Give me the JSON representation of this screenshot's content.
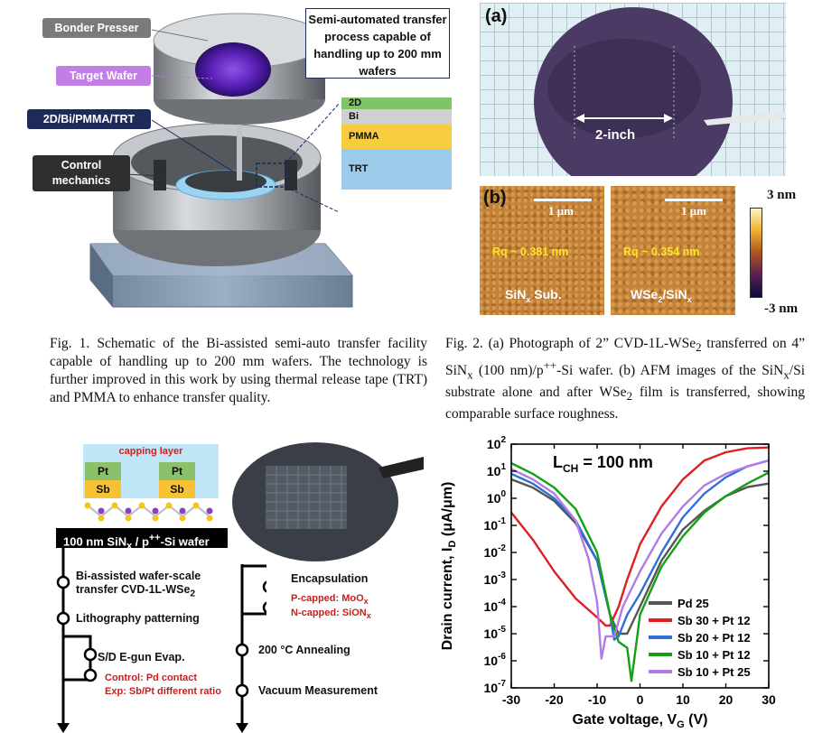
{
  "fig1": {
    "labels": {
      "bonder_presser": "Bonder Presser",
      "target_wafer": "Target Wafer",
      "stack": "2D/Bi/PMMA/TRT",
      "control": "Control mechanics"
    },
    "callout": "Semi-automated transfer process capable of handling up to 200 mm wafers",
    "layers": [
      "2D",
      "Bi",
      "PMMA",
      "TRT"
    ],
    "caption": "Fig. 1. Schematic of the Bi-assisted semi-auto transfer facility capable of handling up to 200 mm wafers. The technology is further improved in this work by using thermal release tape (TRT) and PMMA to enhance transfer quality."
  },
  "fig2": {
    "panel_a": "(a)",
    "panel_b": "(b)",
    "inch_label": "2-inch",
    "scale": "1 μm",
    "rq1": "Rq ~ 0.381 nm",
    "rq2": "Rq ~ 0.354 nm",
    "sub1": "SiN",
    "sub1_sub": "x",
    "sub1_tail": " Sub.",
    "sub2": "WSe",
    "sub2_sub1": "2",
    "sub2_mid": "/SiN",
    "sub2_sub2": "x",
    "cb_top": "3 nm",
    "cb_bot": "-3 nm",
    "caption_html": "Fig. 2. (a) Photograph of 2” CVD-1L-WSe<sub>2</sub> transferred on 4” SiN<sub>x</sub> (100 nm)/p<sup>++</sup>-Si wafer. (b) AFM images of the SiN<sub>x</sub>/Si substrate alone and after WSe<sub>2</sub> film is transferred, showing comparable surface roughness."
  },
  "flow": {
    "capping": "capping layer",
    "pt": "Pt",
    "sb": "Sb",
    "substrate_html": "100 nm SiN<sub>x</sub> / p<sup>++</sup>-Si wafer",
    "step1_html": "Bi-assisted wafer-scale<br>transfer CVD-1L-WSe<sub>2</sub>",
    "step2": "Lithography patterning",
    "step3": "S/D E-gun Evap.",
    "step3_red1": "Control: Pd contact",
    "step3_red2": "Exp: Sb/Pt different ratio",
    "step4": "Encapsulation",
    "step4_red1_html": "P-capped: MoO<sub>x</sub>",
    "step4_red2_html": "N-capped: SiON<sub>x</sub>",
    "step5": "200 °C Annealing",
    "step6": "Vacuum Measurement"
  },
  "chart_data": {
    "type": "line",
    "title": "",
    "annotation": "L_CH = 100 nm",
    "xlabel": "Gate voltage, V_G (V)",
    "ylabel": "Drain current, I_D (μA/μm)",
    "xlim": [
      -30,
      30
    ],
    "ylim_log10": [
      -7,
      2
    ],
    "yscale": "log",
    "x_ticks": [
      "-30",
      "-20",
      "-10",
      "0",
      "10",
      "20",
      "30"
    ],
    "y_tick_exponents": [
      2,
      1,
      0,
      -1,
      -2,
      -3,
      -4,
      -5,
      -6,
      -7
    ],
    "legend_position": "bottom-right",
    "series": [
      {
        "name": "Pd 25",
        "color": "#555555",
        "x": [
          -30,
          -25,
          -20,
          -15,
          -10,
          -7,
          -5,
          -3,
          0,
          5,
          10,
          15,
          20,
          25,
          30
        ],
        "y": [
          5,
          2.5,
          0.8,
          0.12,
          0.005,
          5e-05,
          1e-05,
          1e-05,
          0.0001,
          0.005,
          0.07,
          0.35,
          1.2,
          2.6,
          3.5
        ]
      },
      {
        "name": "Sb 30 + Pt 12",
        "color": "#e01f1f",
        "x": [
          -30,
          -25,
          -20,
          -15,
          -10,
          -8,
          -7,
          -5,
          -3,
          0,
          5,
          10,
          15,
          20,
          25,
          30
        ],
        "y": [
          0.3,
          0.03,
          0.002,
          0.0002,
          4e-05,
          2e-05,
          2e-05,
          0.0001,
          0.001,
          0.02,
          0.5,
          5,
          25,
          50,
          70,
          75
        ]
      },
      {
        "name": "Sb 20 + Pt 12",
        "color": "#2f6fd6",
        "x": [
          -30,
          -25,
          -20,
          -15,
          -10,
          -7,
          -6,
          -5,
          -3,
          0,
          5,
          10,
          15,
          20,
          25,
          30
        ],
        "y": [
          8,
          3.5,
          1,
          0.15,
          0.005,
          5e-05,
          6e-06,
          8e-06,
          5e-05,
          0.0003,
          0.01,
          0.2,
          1.5,
          6,
          15,
          25
        ]
      },
      {
        "name": "Sb 10 + Pt 12",
        "color": "#14a014",
        "x": [
          -30,
          -25,
          -20,
          -15,
          -10,
          -7,
          -5,
          -3,
          -2,
          -1,
          0,
          5,
          10,
          15,
          20,
          25,
          30
        ],
        "y": [
          20,
          8,
          2.5,
          0.4,
          0.01,
          5e-05,
          5e-06,
          3e-06,
          1.8e-07,
          3e-06,
          5e-05,
          0.003,
          0.04,
          0.3,
          1.2,
          3.5,
          9
        ]
      },
      {
        "name": "Sb 10 + Pt 25",
        "color": "#b07ce8",
        "x": [
          -30,
          -25,
          -20,
          -15,
          -12,
          -10,
          -9,
          -8,
          -6,
          -4,
          0,
          5,
          10,
          15,
          20,
          25,
          30
        ],
        "y": [
          12,
          5,
          1.5,
          0.15,
          0.006,
          0.00015,
          1.2e-06,
          8e-06,
          8e-06,
          0.0001,
          0.002,
          0.05,
          0.5,
          3,
          8,
          15,
          25
        ]
      }
    ]
  }
}
